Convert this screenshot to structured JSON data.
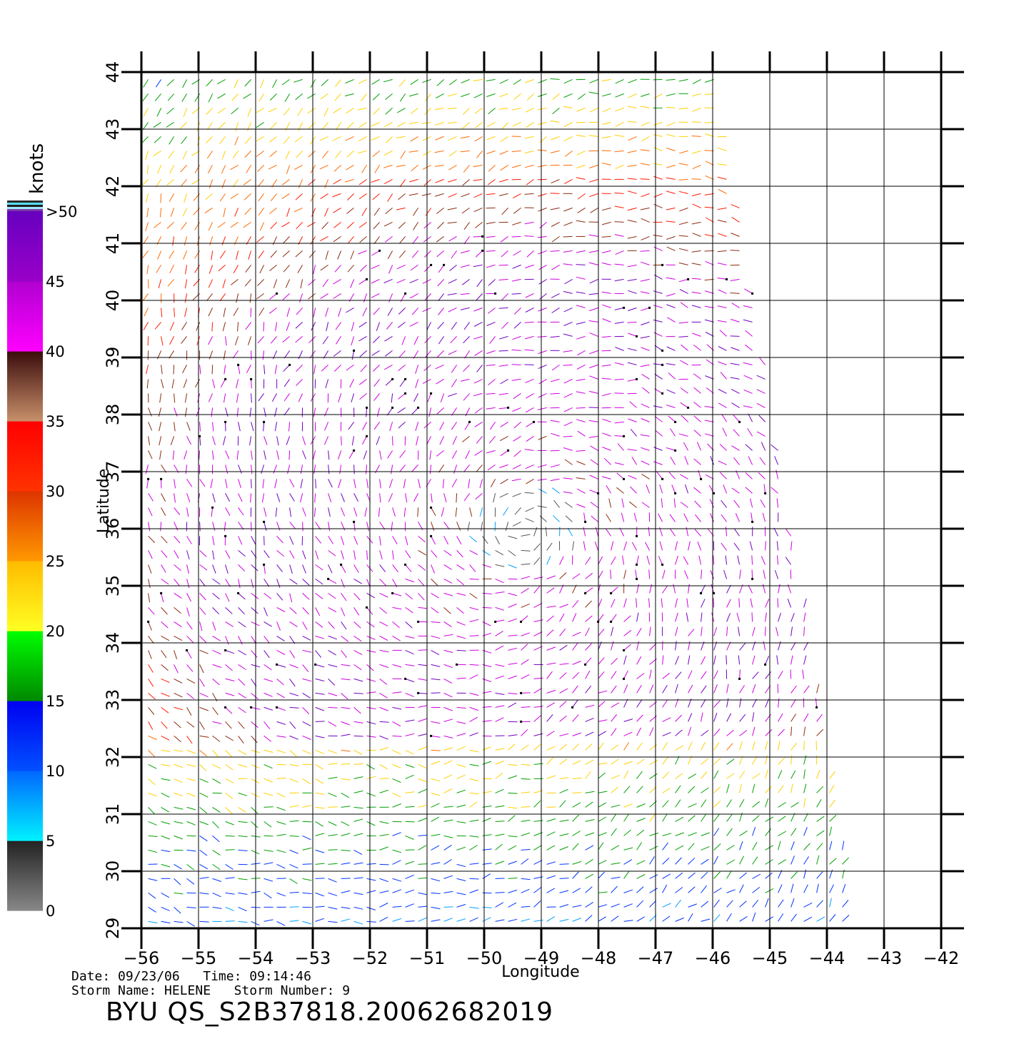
{
  "map": {
    "extent": {
      "lon_min": -56,
      "lon_max": -42,
      "lat_min": 29,
      "lat_max": 44
    },
    "swath": {
      "lon_top_left": -56,
      "lon_top_right": -45.9,
      "lon_bottom_left": -56,
      "lon_bottom_right": -43.5
    },
    "x_ticks": [
      "-56",
      "-55",
      "-54",
      "-53",
      "-52",
      "-51",
      "-50",
      "-49",
      "-48",
      "-47",
      "-46",
      "-45",
      "-44",
      "-43",
      "-42"
    ],
    "y_ticks": [
      "29",
      "30",
      "31",
      "32",
      "33",
      "34",
      "35",
      "36",
      "37",
      "38",
      "39",
      "40",
      "41",
      "42",
      "43",
      "44"
    ],
    "xlabel": "Longitude",
    "ylabel": "Latitude",
    "grid": true,
    "storm_center": {
      "lon": -49.3,
      "lat": 36.0
    }
  },
  "legend": {
    "unit": "knots",
    "labels": [
      "0",
      "5",
      "10",
      "15",
      "20",
      "25",
      "30",
      "35",
      "40",
      "45",
      ">50"
    ],
    "bins": [
      {
        "min": 0,
        "max": 5,
        "gradient": [
          "#888888",
          "#222222"
        ]
      },
      {
        "min": 5,
        "max": 10,
        "gradient": [
          "#00f2ff",
          "#0066ff"
        ]
      },
      {
        "min": 10,
        "max": 15,
        "gradient": [
          "#0050ff",
          "#0000f0"
        ]
      },
      {
        "min": 15,
        "max": 20,
        "gradient": [
          "#008800",
          "#00ff00"
        ]
      },
      {
        "min": 20,
        "max": 25,
        "gradient": [
          "#ffff22",
          "#ffbb00"
        ]
      },
      {
        "min": 25,
        "max": 30,
        "gradient": [
          "#ff9900",
          "#dd3300"
        ]
      },
      {
        "min": 30,
        "max": 35,
        "gradient": [
          "#ff3300",
          "#ff0000"
        ]
      },
      {
        "min": 35,
        "max": 40,
        "gradient": [
          "#c8906a",
          "#3a0b0b"
        ]
      },
      {
        "min": 40,
        "max": 45,
        "gradient": [
          "#ff00ff",
          "#b000d0"
        ]
      },
      {
        "min": 45,
        "max": 50,
        "gradient": [
          "#9a00c8",
          "#6600c0"
        ]
      }
    ],
    "colors": {
      "calm": "#555555",
      "very_light": "#00a0ff",
      "light": "#0033ff",
      "moderate": "#00a000",
      "fresh": "#ffd000",
      "strong": "#ff6a00",
      "gale": "#ff1a00",
      "severe": "#8b2a10",
      "storm": "#d000e0",
      "violent": "#7000c0"
    }
  },
  "footer": {
    "date_label": "Date:",
    "date": "09/23/06",
    "time_label": "Time:",
    "time": "09:14:46",
    "storm_name_label": "Storm Name:",
    "storm_name": "HELENE",
    "storm_number_label": "Storm Number:",
    "storm_number": "9",
    "info_line_1": "Date: 09/23/06   Time: 09:14:46",
    "info_line_2": "Storm Name: HELENE   Storm Number: 9",
    "plot_id": "BYU QS_S2B37818.20062682019"
  }
}
